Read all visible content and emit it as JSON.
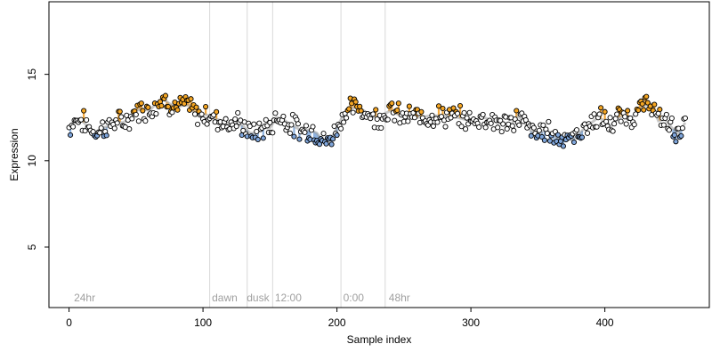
{
  "chart_data": {
    "type": "scatter",
    "title": "",
    "xlabel": "Sample index",
    "ylabel": "Expression",
    "xlim": [
      -15,
      478
    ],
    "ylim": [
      1.5,
      19.2
    ],
    "xticks": [
      0,
      100,
      200,
      300,
      400
    ],
    "yticks": [
      5,
      10,
      15
    ],
    "region_lines": [
      105,
      133,
      152,
      203,
      236
    ],
    "region_labels": [
      {
        "x": 3,
        "text": "24hr"
      },
      {
        "x": 106,
        "text": "dawn"
      },
      {
        "x": 132,
        "text": "dusk"
      },
      {
        "x": 153,
        "text": "12:00"
      },
      {
        "x": 204,
        "text": "0:00"
      },
      {
        "x": 238,
        "text": "48hr"
      }
    ],
    "colors": {
      "point_fill_default": "#ffffff",
      "point_fill_highlight": "#f5a623",
      "point_fill_low": "#7fa6dc",
      "point_stroke": "#000000",
      "band_high": "#f3a83b",
      "band_low": "#8fb3e0",
      "trace": "#9a9a9a",
      "region_line": "#d8d8d8",
      "region_label": "#a0a0a0"
    },
    "series_generator": {
      "n": 461,
      "anchors": [
        [
          0,
          11.9
        ],
        [
          5,
          12.4
        ],
        [
          10,
          12.3
        ],
        [
          15,
          11.9
        ],
        [
          20,
          11.6
        ],
        [
          25,
          11.9
        ],
        [
          30,
          12.0
        ],
        [
          35,
          12.3
        ],
        [
          40,
          12.2
        ],
        [
          45,
          12.4
        ],
        [
          50,
          12.9
        ],
        [
          55,
          13.0
        ],
        [
          60,
          12.9
        ],
        [
          65,
          13.3
        ],
        [
          70,
          13.6
        ],
        [
          75,
          13.3
        ],
        [
          80,
          13.1
        ],
        [
          85,
          13.2
        ],
        [
          90,
          13.2
        ],
        [
          95,
          12.6
        ],
        [
          100,
          12.7
        ],
        [
          105,
          12.6
        ],
        [
          110,
          12.4
        ],
        [
          115,
          12.3
        ],
        [
          120,
          12.1
        ],
        [
          125,
          12.2
        ],
        [
          130,
          12.0
        ],
        [
          135,
          11.6
        ],
        [
          140,
          11.6
        ],
        [
          145,
          11.9
        ],
        [
          150,
          11.9
        ],
        [
          155,
          12.5
        ],
        [
          160,
          12.4
        ],
        [
          165,
          12.1
        ],
        [
          170,
          11.9
        ],
        [
          175,
          11.7
        ],
        [
          180,
          11.8
        ],
        [
          185,
          11.6
        ],
        [
          190,
          11.1
        ],
        [
          195,
          11.2
        ],
        [
          200,
          11.9
        ],
        [
          205,
          12.7
        ],
        [
          210,
          13.0
        ],
        [
          215,
          13.1
        ],
        [
          220,
          12.9
        ],
        [
          225,
          12.6
        ],
        [
          230,
          12.5
        ],
        [
          235,
          12.7
        ],
        [
          240,
          12.9
        ],
        [
          245,
          12.7
        ],
        [
          250,
          12.5
        ],
        [
          255,
          12.6
        ],
        [
          260,
          12.5
        ],
        [
          270,
          12.6
        ],
        [
          280,
          12.6
        ],
        [
          290,
          12.5
        ],
        [
          295,
          12.4
        ],
        [
          300,
          12.3
        ],
        [
          310,
          12.5
        ],
        [
          320,
          12.2
        ],
        [
          330,
          12.1
        ],
        [
          335,
          12.6
        ],
        [
          340,
          12.2
        ],
        [
          345,
          11.7
        ],
        [
          350,
          11.5
        ],
        [
          355,
          11.8
        ],
        [
          360,
          11.6
        ],
        [
          365,
          11.3
        ],
        [
          370,
          11.5
        ],
        [
          375,
          11.2
        ],
        [
          380,
          11.5
        ],
        [
          385,
          11.9
        ],
        [
          390,
          12.2
        ],
        [
          395,
          12.5
        ],
        [
          400,
          12.3
        ],
        [
          405,
          12.0
        ],
        [
          410,
          12.5
        ],
        [
          415,
          12.6
        ],
        [
          420,
          12.5
        ],
        [
          425,
          12.9
        ],
        [
          430,
          13.2
        ],
        [
          435,
          13.3
        ],
        [
          440,
          12.3
        ],
        [
          445,
          12.4
        ],
        [
          450,
          11.9
        ],
        [
          455,
          11.6
        ],
        [
          460,
          12.2
        ]
      ],
      "high_threshold": 12.8,
      "low_threshold": 11.5
    }
  }
}
